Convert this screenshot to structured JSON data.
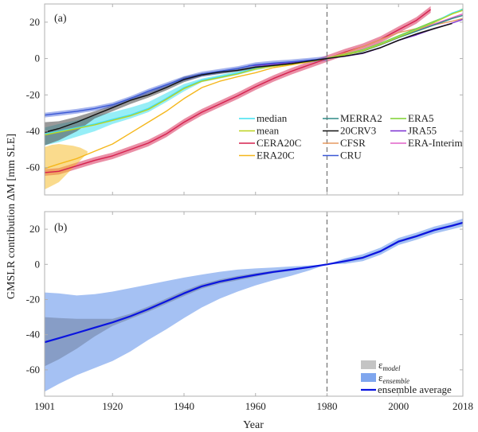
{
  "chart_data": [
    {
      "type": "line",
      "panel_label": "(a)",
      "xlabel": "",
      "ylabel": "GMSLR contribution ΔM [mm SLE]",
      "xlim": [
        1901,
        2018
      ],
      "ylim": [
        -75,
        30
      ],
      "xticks": [
        1920,
        1940,
        1960,
        1980,
        2000
      ],
      "yticks": [
        20,
        0,
        -20,
        -40,
        -60
      ],
      "ytick_labels": [
        "20",
        "0",
        "-20",
        "-40",
        "-60"
      ],
      "reference_line": {
        "x": 1980,
        "style": "dashed",
        "color": "#808080"
      },
      "legend_position": "bottom-right",
      "legend_columns": 3,
      "series": [
        {
          "name": "median",
          "color": "#3fe0f0",
          "x": [
            1901,
            1905,
            1910,
            1915,
            1920,
            1925,
            1930,
            1935,
            1940,
            1945,
            1950,
            1955,
            1960,
            1965,
            1970,
            1975,
            1980,
            1985,
            1990,
            1995,
            2000,
            2005,
            2010,
            2015,
            2018
          ],
          "y": [
            -41.5,
            -40,
            -38,
            -36,
            -33.5,
            -31,
            -27.5,
            -22,
            -16,
            -12,
            -10,
            -8,
            -5.5,
            -4,
            -2.8,
            -1.5,
            0,
            2,
            4.5,
            8,
            12,
            16,
            20,
            25,
            27
          ],
          "band_lower": [
            -47.8,
            -46,
            -43,
            -40,
            -36,
            -33,
            -29.5,
            -24,
            -18,
            -13,
            -11,
            -9,
            -6.5,
            -4.5,
            -3.2,
            -1.8,
            0,
            2,
            4.5,
            8,
            12,
            16,
            20,
            25,
            27
          ],
          "band_upper": [
            -38,
            -36,
            -34,
            -31.5,
            -29.5,
            -27,
            -24,
            -19,
            -14,
            -11,
            -9,
            -7,
            -4.8,
            -3.5,
            -2.4,
            -1.2,
            0,
            2,
            4.5,
            8,
            12,
            16,
            20,
            25,
            27
          ]
        },
        {
          "name": "mean",
          "color": "#bcd21e",
          "x": [
            1901,
            1905,
            1910,
            1915,
            1920,
            1925,
            1930,
            1935,
            1940,
            1945,
            1950,
            1955,
            1960,
            1965,
            1970,
            1975,
            1980,
            1985,
            1990,
            1995,
            2000,
            2005,
            2010,
            2015,
            2018
          ],
          "y": [
            -42,
            -40.5,
            -38.5,
            -36.5,
            -34,
            -31.5,
            -28,
            -22.5,
            -16.5,
            -12.5,
            -10.5,
            -8.5,
            -5.8,
            -4.2,
            -3,
            -1.6,
            0,
            2,
            4.3,
            7.8,
            11.8,
            15.8,
            19.8,
            24.5,
            26.5
          ]
        },
        {
          "name": "CERA20C",
          "color": "#d6204e",
          "x": [
            1901,
            1905,
            1910,
            1915,
            1920,
            1925,
            1930,
            1935,
            1940,
            1945,
            1950,
            1955,
            1960,
            1965,
            1970,
            1975,
            1980,
            1985,
            1990,
            1995,
            2000,
            2005,
            2009
          ],
          "y": [
            -62.7,
            -62,
            -59,
            -56,
            -53.5,
            -50,
            -46.5,
            -41.5,
            -35,
            -29.5,
            -25,
            -20.5,
            -15.5,
            -11,
            -7,
            -3.5,
            0,
            3.5,
            6.5,
            10.5,
            15.8,
            21,
            27
          ],
          "band_halfwidth": 1.8
        },
        {
          "name": "ERA20C",
          "color": "#f5b71c",
          "x": [
            1901,
            1905,
            1910,
            1915,
            1920,
            1925,
            1930,
            1935,
            1940,
            1945,
            1950,
            1955,
            1960,
            1965,
            1970,
            1975,
            1980,
            1985,
            1990,
            1995,
            2000,
            2005,
            2010
          ],
          "y": [
            -60.5,
            -58,
            -55,
            -51,
            -47,
            -41,
            -35,
            -29,
            -22,
            -16,
            -12.5,
            -10,
            -7.8,
            -5,
            -3.5,
            -1.8,
            0,
            2,
            4.5,
            8,
            12,
            16,
            20.5
          ],
          "spread_x": [
            1901,
            1903,
            1905,
            1907,
            1909,
            1911,
            1913
          ],
          "spread_lower": [
            -72,
            -70,
            -68,
            -64,
            -60,
            -56,
            -52
          ],
          "spread_upper": [
            -48.7,
            -47.5,
            -47,
            -47.5,
            -48,
            -49,
            -51
          ]
        },
        {
          "name": "MERRA2",
          "color": "#2e8b86",
          "x": [
            1980,
            1985,
            1990,
            1995,
            2000,
            2005,
            2010,
            2015,
            2018
          ],
          "y": [
            0,
            2,
            4,
            7.5,
            11.5,
            15,
            18.5,
            22,
            23.7
          ]
        },
        {
          "name": "20CRV3",
          "color": "#111111",
          "x": [
            1901,
            1905,
            1910,
            1915,
            1920,
            1925,
            1930,
            1935,
            1940,
            1945,
            1950,
            1955,
            1960,
            1965,
            1970,
            1975,
            1980,
            1985,
            1990,
            1995,
            2000,
            2005,
            2010,
            2015
          ],
          "y": [
            -40.6,
            -38.5,
            -35,
            -31,
            -27,
            -23,
            -20,
            -16,
            -11.5,
            -9,
            -7.5,
            -6.5,
            -4.8,
            -3.8,
            -2.8,
            -1.4,
            0,
            1.3,
            3,
            6,
            10,
            13.5,
            16.5,
            19.3
          ],
          "band_lower": [
            -47.8,
            -45,
            -40,
            -33,
            -29,
            -25,
            -21.5,
            -17.5,
            -13,
            -10,
            -8.5,
            -7.2,
            -5.5,
            -4.3,
            -3.2,
            -1.7,
            0,
            1,
            2.6,
            5.6,
            9.6,
            13,
            16,
            19
          ],
          "band_upper": [
            -35,
            -34.5,
            -32,
            -29,
            -25.5,
            -21.5,
            -18.5,
            -14.5,
            -10,
            -8,
            -6.6,
            -5.8,
            -4.1,
            -3.3,
            -2.4,
            -1.1,
            0,
            1.6,
            3.4,
            6.4,
            10.4,
            14,
            17,
            19.6
          ]
        },
        {
          "name": "CFSR",
          "color": "#e59a61",
          "x": [
            1979,
            1985,
            1990,
            1995,
            2000,
            2005,
            2010,
            2015,
            2018
          ],
          "y": [
            -0.3,
            3,
            6.5,
            10.5,
            14.2,
            16.5,
            18.5,
            20.5,
            22
          ]
        },
        {
          "name": "CRU",
          "color": "#3a58d6",
          "x": [
            1901,
            1905,
            1910,
            1915,
            1920,
            1925,
            1930,
            1935,
            1940,
            1945,
            1950,
            1955,
            1960,
            1965,
            1970,
            1975,
            1980
          ],
          "y": [
            -31.1,
            -30.2,
            -29,
            -27.5,
            -25.4,
            -22,
            -18,
            -14.5,
            -11,
            -8.5,
            -7,
            -5.5,
            -3.4,
            -2.5,
            -1.8,
            -0.9,
            0
          ],
          "band_halfwidth": 1.3
        },
        {
          "name": "ERA5",
          "color": "#7dd12f",
          "x": [
            1979,
            1985,
            1990,
            1995,
            2000,
            2005,
            2010,
            2015,
            2018
          ],
          "y": [
            -0.2,
            2.3,
            4.8,
            8.4,
            12.5,
            16.5,
            20.5,
            24.5,
            27.3
          ]
        },
        {
          "name": "JRA55",
          "color": "#7a2ed1",
          "x": [
            1958,
            1962,
            1966,
            1970,
            1975,
            1980,
            1985,
            1990,
            1995,
            2000,
            2005,
            2010,
            2015,
            2018
          ],
          "y": [
            -4,
            -3.5,
            -2.8,
            -2.2,
            -1,
            0,
            1.2,
            2.8,
            6,
            10,
            13,
            16.5,
            19.5,
            21.5
          ]
        },
        {
          "name": "ERA-Interim",
          "color": "#e060c8",
          "x": [
            1979,
            1985,
            1990,
            1995,
            2000,
            2005,
            2010,
            2015,
            2018
          ],
          "y": [
            -0.2,
            2,
            4.4,
            7.8,
            11.8,
            15.5,
            19,
            22.5,
            24.5
          ]
        }
      ]
    },
    {
      "type": "area",
      "panel_label": "(b)",
      "xlabel": "Year",
      "ylabel": "GMSLR contribution ΔM [mm SLE]",
      "xlim": [
        1901,
        2018
      ],
      "ylim": [
        -75,
        30
      ],
      "xticks": [
        1901,
        1920,
        1940,
        1960,
        1980,
        2000,
        2018
      ],
      "xtick_labels": [
        "1901",
        "1920",
        "1940",
        "1960",
        "1980",
        "2000",
        "2018"
      ],
      "yticks": [
        20,
        0,
        -20,
        -40,
        -60
      ],
      "ytick_labels": [
        "20",
        "0",
        "-20",
        "-40",
        "-60"
      ],
      "reference_line": {
        "x": 1980,
        "style": "dashed",
        "color": "#808080"
      },
      "legend_position": "bottom-right",
      "x": [
        1901,
        1905,
        1910,
        1915,
        1920,
        1925,
        1930,
        1935,
        1940,
        1945,
        1950,
        1955,
        1960,
        1965,
        1970,
        1975,
        1980,
        1985,
        1990,
        1995,
        2000,
        2005,
        2010,
        2015,
        2018
      ],
      "series": [
        {
          "name": "ensemble average",
          "color": "#0a14e0",
          "y": [
            -44.3,
            -42,
            -39,
            -36,
            -33,
            -29.5,
            -25.5,
            -21,
            -16.5,
            -12.5,
            -9.8,
            -7.8,
            -6,
            -4.3,
            -3,
            -1.6,
            0,
            1.8,
            3.8,
            7.5,
            13,
            16,
            19.5,
            22,
            23.7
          ]
        },
        {
          "name": "ε_ensemble",
          "label_main": "ε",
          "label_sub": "ensemble",
          "color": "#7fa6ee",
          "lower": [
            -72.4,
            -68,
            -63,
            -59,
            -55,
            -49.5,
            -43,
            -37,
            -30.5,
            -24.5,
            -19.5,
            -15.5,
            -12,
            -9,
            -6.5,
            -3.5,
            0,
            0.3,
            1.8,
            5.5,
            11,
            14,
            17.5,
            20,
            21.5
          ],
          "upper": [
            -16,
            -16.5,
            -17.7,
            -17,
            -15.5,
            -13.5,
            -11.5,
            -9.5,
            -7.5,
            -5.8,
            -4.2,
            -3,
            -2.3,
            -1.8,
            -1.2,
            -0.6,
            0,
            3.3,
            5.8,
            9.5,
            15,
            18,
            21.5,
            24,
            26
          ]
        },
        {
          "name": "ε_model",
          "label_main": "ε",
          "label_sub": "model",
          "color": "#a9a9a9",
          "lower": [
            -58,
            -54,
            -48,
            -41,
            -35,
            -31,
            -27,
            -22.5,
            -18,
            -13.8,
            -11,
            -9,
            -7,
            -5,
            -3.6,
            -2,
            0,
            1.2,
            3.2,
            7,
            12.4,
            15.4,
            18.9,
            21.4,
            23.1
          ],
          "upper": [
            -30,
            -30.5,
            -31,
            -31,
            -31,
            -28,
            -24,
            -19.5,
            -15,
            -11.2,
            -8.6,
            -6.6,
            -5,
            -3.6,
            -2.4,
            -1.2,
            0,
            2.4,
            4.4,
            8,
            13.6,
            16.6,
            20.1,
            22.6,
            24.3
          ]
        }
      ]
    }
  ]
}
